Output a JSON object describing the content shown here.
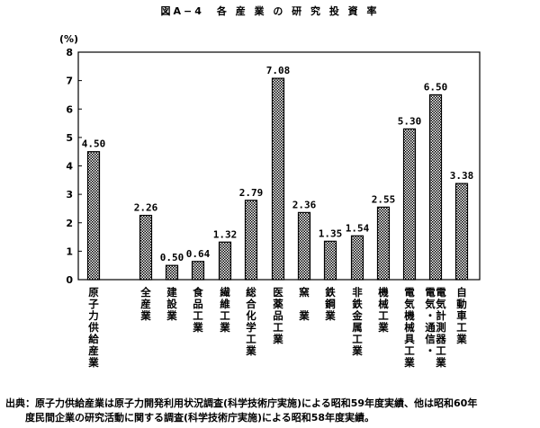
{
  "chart_data": {
    "type": "bar",
    "title": "図A−4　各 産 業 の 研 究 投 資 率",
    "ylabel": "(%)",
    "ylim": [
      0,
      8
    ],
    "yticks": [
      "0",
      "1",
      "2",
      "3",
      "4",
      "5",
      "6",
      "7",
      "8"
    ],
    "grid": false,
    "categories": [
      "原子力供給産業",
      "全産業",
      "建設業",
      "食品工業",
      "繊維工業",
      "総合化学工業",
      "医薬品工業",
      "窯業",
      "鉄鋼業",
      "非鉄金属工業",
      "機械工業",
      "電気機械具工業",
      "電気・通信・電気計測器工業",
      "自動車工業"
    ],
    "values": [
      4.5,
      2.26,
      0.5,
      0.64,
      1.32,
      2.79,
      7.08,
      2.36,
      1.35,
      1.54,
      2.55,
      5.3,
      6.5,
      3.38
    ],
    "value_labels": [
      "4.50",
      "2.26",
      "0.50",
      "0.64",
      "1.32",
      "2.79",
      "7.08",
      "2.36",
      "1.35",
      "1.54",
      "2.55",
      "5.30",
      "6.50",
      "3.38"
    ],
    "xlabels": [
      [
        "原子力供給産業"
      ],
      [
        "全産業"
      ],
      [
        "建設業"
      ],
      [
        "食品工業"
      ],
      [
        "繊維工業"
      ],
      [
        "総合化学工業"
      ],
      [
        "医薬品工業"
      ],
      [
        "窯　業"
      ],
      [
        "鉄鋼業"
      ],
      [
        "非鉄金属工業"
      ],
      [
        "機械工業"
      ],
      [
        "電気機械具工業"
      ],
      [
        "電気・通信・",
        "電気計測器工業"
      ],
      [
        "自動車工業"
      ]
    ],
    "bar_fill": "#ffffff",
    "bar_pattern_color": "#000000"
  },
  "source": {
    "line1": "出典：原子力供給産業は原子力開発利用状況調査(科学技術庁実施)による昭和59年度実績、他は昭和60年",
    "line2": "　　度民間企業の研究活動に関する調査(科学技術庁実施)による昭和58年度実績。"
  }
}
